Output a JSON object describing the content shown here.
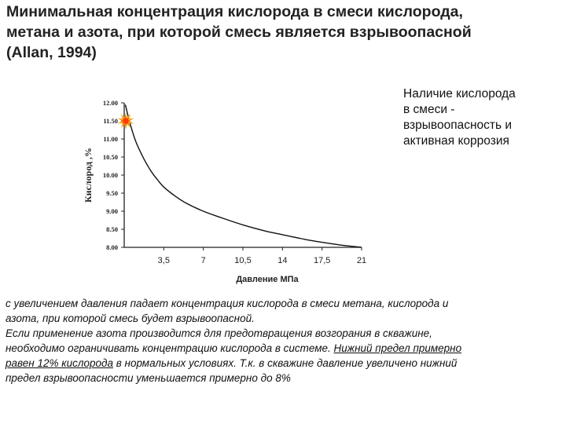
{
  "title": {
    "line1": "Минимальная концентрация кислорода в смеси кислорода,",
    "line2": "метана и азота, при которой смесь является взрывоопасной",
    "line3": "(Allan, 1994)"
  },
  "side_note": {
    "line1": "Наличие кислорода",
    "line2": "в  смеси -",
    "line3": "взрывоопасность и",
    "line4": "активная коррозия"
  },
  "chart_data": {
    "type": "line",
    "xlabel": "Давление МПа",
    "ylabel": "Кислород ,%",
    "xlim": [
      0,
      21
    ],
    "ylim": [
      8.0,
      12.0
    ],
    "x_ticks": [
      3.5,
      7,
      10.5,
      14,
      17.5,
      21
    ],
    "x_tick_labels": [
      "3,5",
      "7",
      "10,5",
      "14",
      "17,5",
      "21"
    ],
    "y_ticks": [
      8.0,
      8.5,
      9.0,
      9.5,
      10.0,
      10.5,
      11.0,
      11.5,
      12.0
    ],
    "y_tick_labels": [
      "8.00",
      "8.50",
      "9.00",
      "9.50",
      "10.00",
      "10.50",
      "11.00",
      "11.50",
      "12.00"
    ],
    "grid": false,
    "series": [
      {
        "x": [
          0.1,
          0.5,
          1.0,
          1.5,
          2.0,
          2.5,
          3.0,
          3.5,
          4.5,
          5.5,
          7.0,
          8.5,
          10.5,
          12.5,
          14.0,
          16.0,
          17.5,
          19.0,
          21.0
        ],
        "y": [
          11.95,
          11.45,
          10.95,
          10.6,
          10.3,
          10.05,
          9.85,
          9.67,
          9.42,
          9.22,
          9.0,
          8.83,
          8.62,
          8.45,
          8.35,
          8.22,
          8.14,
          8.07,
          8.0
        ]
      }
    ],
    "annotation_icon": "explosion-burst-icon",
    "colors": {
      "line": "#111111",
      "burst_outer": "#f5a623",
      "burst_inner": "#ff3b00"
    }
  },
  "bottom_text": {
    "line1": "с увеличением давления падает концентрация кислорода в смеси метана, кислорода и",
    "line2": "азота, при которой смесь будет взрывоопасной.",
    "line3": "Если применение азота производится для предотвращения возгорания в скважине,",
    "line4_a": "необходимо ограничивать концентрацию кислорода в системе. ",
    "line4_b": "Нижний предел примерно",
    "line5_a": "равен 12% кислорода",
    "line5_b": " в нормальных условиях. Т.к. в скважине давление увеличено нижний",
    "line6": "предел взрывоопасности уменьшается примерно до 8%"
  }
}
